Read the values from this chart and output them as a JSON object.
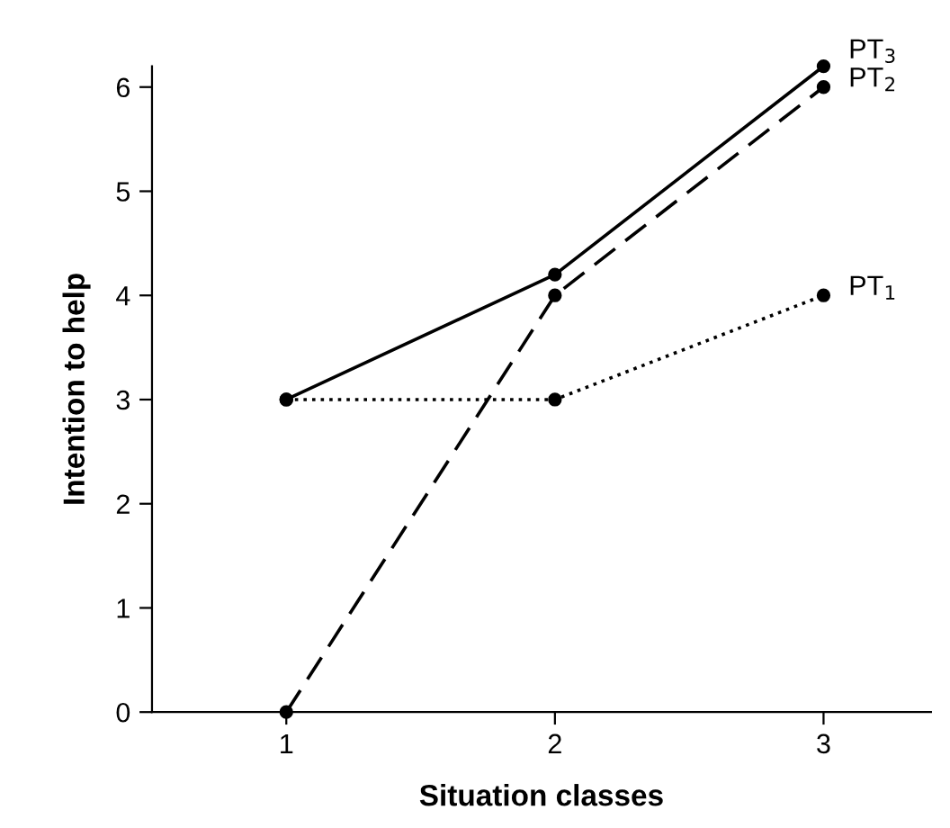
{
  "chart_data": {
    "type": "line",
    "xlabel": "Situation classes",
    "ylabel": "Intention to help",
    "x": [
      1,
      2,
      3
    ],
    "xlim": [
      0.5,
      3.4
    ],
    "xticks": [
      1,
      2,
      3
    ],
    "ylim": [
      0,
      6.2
    ],
    "yticks": [
      0,
      1,
      2,
      3,
      4,
      5,
      6
    ],
    "marker": "circle",
    "grid": false,
    "legend": false,
    "series": [
      {
        "name": "PT$_{3}$",
        "color": "#000000",
        "line_style": "solid",
        "values": [
          3,
          4.2,
          6.2
        ]
      },
      {
        "name": "PT$_{2}$",
        "color": "#000000",
        "line_style": "dashed",
        "values": [
          0,
          4,
          6
        ]
      },
      {
        "name": "PT$_{1}$",
        "color": "#000000",
        "line_style": "dotted",
        "values": [
          3,
          3,
          4
        ]
      }
    ]
  }
}
